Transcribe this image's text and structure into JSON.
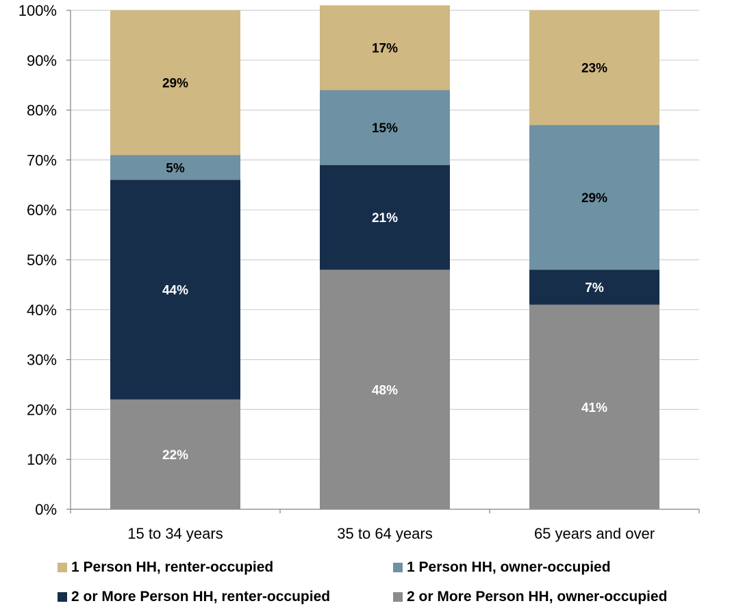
{
  "chart_data": {
    "type": "bar",
    "stacked": true,
    "percent_axis": true,
    "categories": [
      "15 to 34 years",
      "35 to 64 years",
      "65 years and over"
    ],
    "ylim": [
      0,
      100
    ],
    "yticks": [
      "0%",
      "10%",
      "20%",
      "30%",
      "40%",
      "50%",
      "60%",
      "70%",
      "80%",
      "90%",
      "100%"
    ],
    "grid": true,
    "legend_position": "bottom",
    "series": [
      {
        "name": "2 or More Person HH, owner-occupied",
        "color": "#8c8c8c",
        "label_color": "#ffffff",
        "values": [
          22,
          48,
          41
        ],
        "labels": [
          "22%",
          "48%",
          "41%"
        ]
      },
      {
        "name": "2 or More Person HH, renter-occupied",
        "color": "#172e4b",
        "label_color": "#ffffff",
        "values": [
          44,
          21,
          7
        ],
        "labels": [
          "44%",
          "21%",
          "7%"
        ]
      },
      {
        "name": "1 Person HH, owner-occupied",
        "color": "#6e92a3",
        "label_color": "#000000",
        "values": [
          5,
          15,
          29
        ],
        "labels": [
          "5%",
          "15%",
          "29%"
        ]
      },
      {
        "name": "1 Person HH, renter-occupied",
        "color": "#cfb882",
        "label_color": "#000000",
        "values": [
          29,
          17,
          23
        ],
        "labels": [
          "29%",
          "17%",
          "23%"
        ]
      }
    ]
  }
}
